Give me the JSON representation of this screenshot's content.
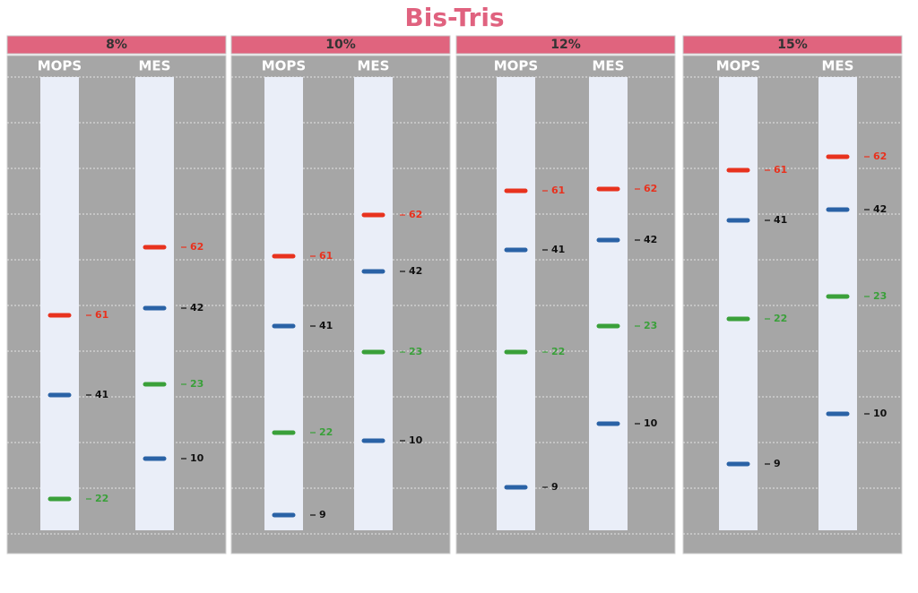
{
  "title": "Bis-Tris",
  "panels": [
    {
      "header": "8%",
      "lanes": [
        {
          "label": "MOPS",
          "bands": [
            61,
            41,
            22
          ]
        },
        {
          "label": "MES",
          "bands": [
            62,
            42,
            23,
            10
          ]
        }
      ]
    },
    {
      "header": "10%",
      "lanes": [
        {
          "label": "MOPS",
          "bands": [
            61,
            41,
            22,
            9
          ]
        },
        {
          "label": "MES",
          "bands": [
            62,
            42,
            23,
            10
          ]
        }
      ]
    },
    {
      "header": "12%",
      "lanes": [
        {
          "label": "MOPS",
          "bands": [
            61,
            41,
            22,
            9
          ]
        },
        {
          "label": "MES",
          "bands": [
            62,
            42,
            23,
            10
          ]
        }
      ]
    },
    {
      "header": "15%",
      "lanes": [
        {
          "label": "MOPS",
          "bands": [
            61,
            41,
            22,
            9
          ]
        },
        {
          "label": "MES",
          "bands": [
            62,
            42,
            23,
            10
          ]
        }
      ]
    }
  ]
}
